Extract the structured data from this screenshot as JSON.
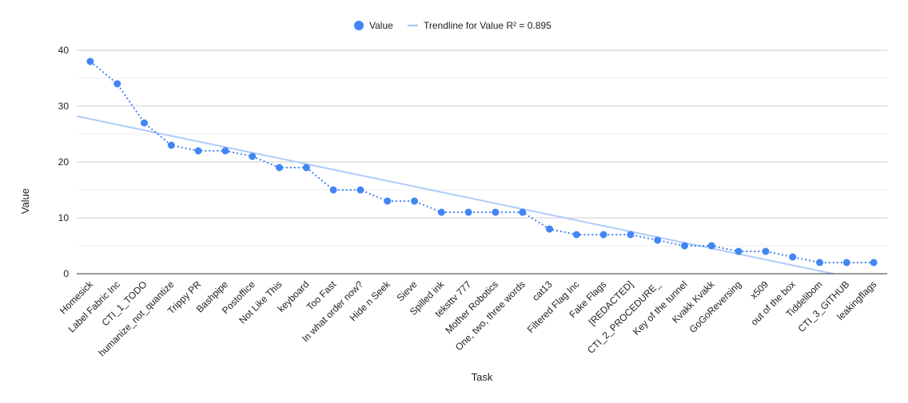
{
  "chart_data": {
    "type": "line",
    "title": "",
    "xlabel": "Task",
    "ylabel": "Value",
    "ylim": [
      0,
      40
    ],
    "yticks": [
      0,
      10,
      20,
      30,
      40
    ],
    "grid": true,
    "legend_position": "top-center",
    "categories": [
      "Homesick",
      "Label Fabric Inc",
      "CTI_1_TODO",
      "humanize_not_quantize",
      "Trippy PR",
      "Bashpipe",
      "Postoffice",
      "Not Like This",
      "keyboard",
      "Too Fast",
      "In what order now?",
      "Hide n Seek",
      "Sieve",
      "Spilled ink",
      "teksttv 777",
      "Mother Robotics",
      "One, two, three words",
      "cat13",
      "Filtered Flag Inc",
      "Fake Flags",
      "[REDACTED]",
      "CTI_2_PROCEDURE_",
      "Key of the tunnel",
      "Kvakk Kvakk",
      "GoGoReversing",
      "x509",
      "out of the box",
      "Tiddelibom",
      "CTI_3_GITHUB",
      "leakingflags"
    ],
    "series": [
      {
        "name": "Value",
        "color": "#4285F4",
        "style": "dotted-line-with-markers",
        "values": [
          38,
          34,
          27,
          23,
          22,
          22,
          21,
          19,
          19,
          15,
          15,
          13,
          13,
          11,
          11,
          11,
          11,
          8,
          7,
          7,
          7,
          6,
          5,
          5,
          4,
          4,
          3,
          2,
          2,
          2
        ]
      }
    ],
    "trendline": {
      "label": "Trendline for Value R² = 0.895",
      "color": "#AECBFA",
      "start": [
        -0.5,
        28.2
      ],
      "end": [
        27.5,
        0
      ]
    }
  }
}
